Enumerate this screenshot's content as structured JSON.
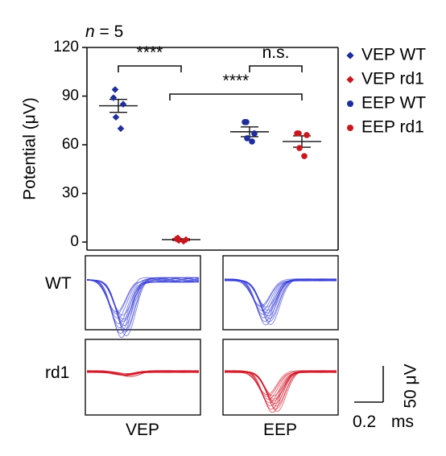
{
  "figure": {
    "n_label_prefix": "n",
    "n_label_suffix": " = 5",
    "row_labels": [
      "WT",
      "rd1"
    ],
    "col_labels": [
      "VEP",
      "EEP"
    ],
    "scale_bar": {
      "vertical": "50 μV",
      "horizontal_value": "0.2",
      "horizontal_unit": "ms"
    }
  },
  "chart_data": [
    {
      "type": "scatter",
      "title": "",
      "xlabel": "",
      "ylabel": "Potential (μV)",
      "ylim": [
        0,
        120
      ],
      "yticks": [
        "0",
        "30",
        "60",
        "90",
        "120"
      ],
      "grid": false,
      "legend_position": "right",
      "colors": {
        "wt": "#1f2e9c",
        "rd1": "#c8181e"
      },
      "series": [
        {
          "name": "VEP WT",
          "marker": "diamond",
          "color": "#1f2e9c",
          "mean": 84,
          "sem": 4,
          "values": [
            94,
            89,
            85,
            77,
            70
          ]
        },
        {
          "name": "VEP rd1",
          "marker": "diamond",
          "color": "#c8181e",
          "mean": 1.5,
          "sem": 0.5,
          "values": [
            2.5,
            2,
            1.5,
            1,
            0.5
          ]
        },
        {
          "name": "EEP WT",
          "marker": "circle",
          "color": "#1f2e9c",
          "mean": 68,
          "sem": 3,
          "values": [
            74,
            74,
            67,
            64,
            62
          ]
        },
        {
          "name": "EEP rd1",
          "marker": "circle",
          "color": "#c8181e",
          "mean": 62,
          "sem": 3.5,
          "values": [
            67,
            67,
            66,
            58,
            53
          ]
        }
      ],
      "annotations": [
        {
          "text": "****",
          "from": "VEP WT",
          "to": "VEP rd1"
        },
        {
          "text": "n.s.",
          "from": "EEP WT",
          "to": "EEP rd1"
        },
        {
          "text": "****",
          "from": "VEP rd1",
          "to": "EEP rd1"
        }
      ]
    },
    {
      "type": "line",
      "description_label": "trace panels",
      "panels": [
        {
          "row": "WT",
          "col": "VEP",
          "color": "#3a3fd6",
          "baseline_uV": 0,
          "peak_uV": -38,
          "peak_time_ms": 0.22
        },
        {
          "row": "WT",
          "col": "EEP",
          "color": "#3a3fd6",
          "baseline_uV": 0,
          "peak_uV": -30,
          "peak_time_ms": 0.26
        },
        {
          "row": "rd1",
          "col": "VEP",
          "color": "#d11a2a",
          "baseline_uV": 0,
          "peak_uV": -3,
          "peak_time_ms": 0.25
        },
        {
          "row": "rd1",
          "col": "EEP",
          "color": "#d11a2a",
          "baseline_uV": 0,
          "peak_uV": -27,
          "peak_time_ms": 0.3
        }
      ]
    }
  ]
}
